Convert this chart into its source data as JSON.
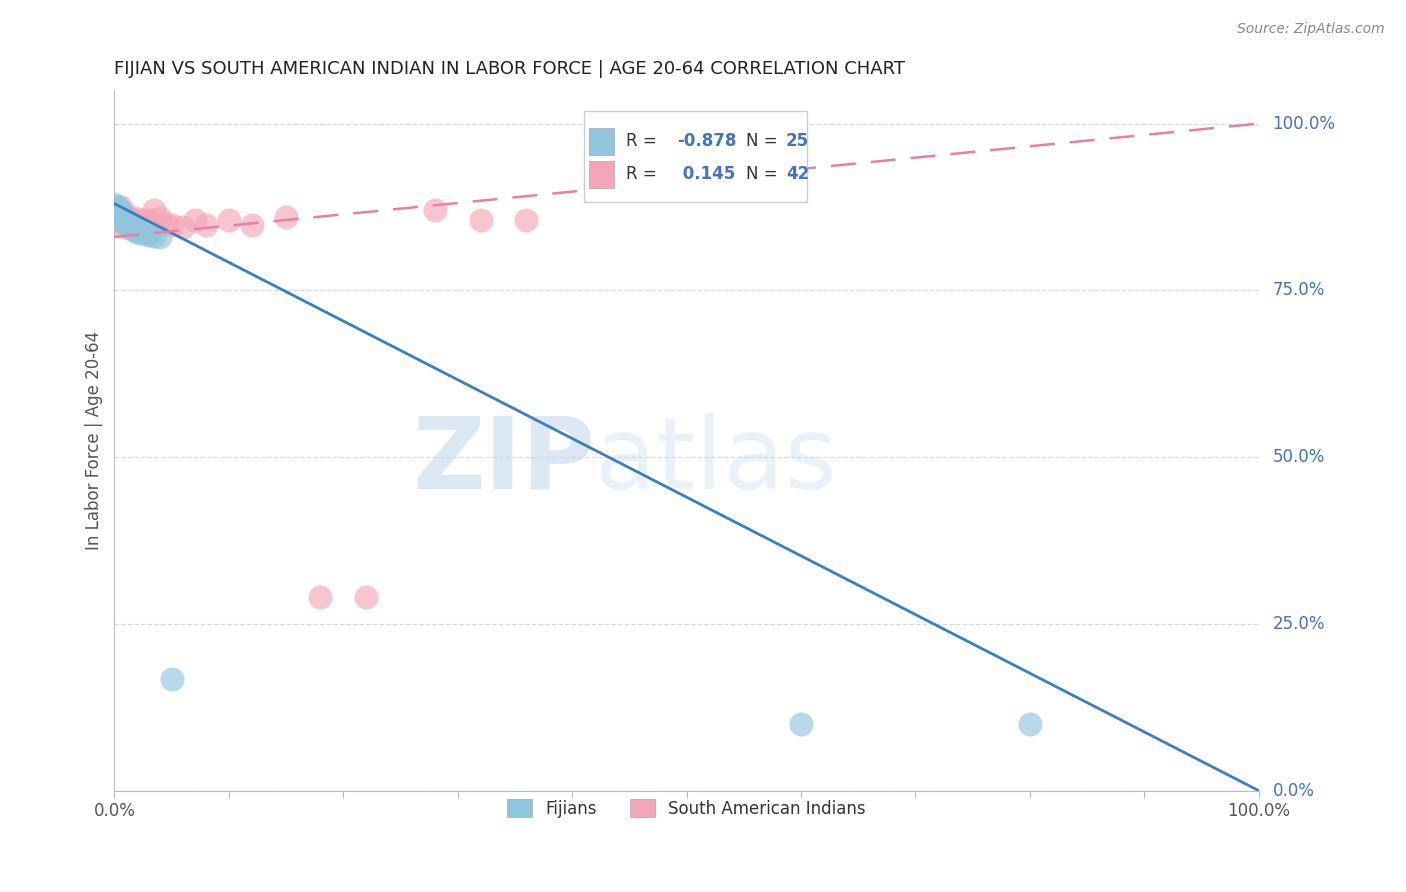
{
  "title": "FIJIAN VS SOUTH AMERICAN INDIAN IN LABOR FORCE | AGE 20-64 CORRELATION CHART",
  "source": "Source: ZipAtlas.com",
  "ylabel": "In Labor Force | Age 20-64",
  "watermark_zip": "ZIP",
  "watermark_atlas": "atlas",
  "fijian_color": "#92c5de",
  "south_american_color": "#f4a6b8",
  "fijian_line_color": "#3a7fc1",
  "south_american_line_color": "#e87fa0",
  "R_fijian": -0.878,
  "N_fijian": 25,
  "R_south_american": 0.145,
  "N_south_american": 42,
  "fijian_x": [
    0.0,
    0.002,
    0.003,
    0.004,
    0.005,
    0.006,
    0.007,
    0.008,
    0.009,
    0.01,
    0.012,
    0.013,
    0.015,
    0.016,
    0.018,
    0.02,
    0.022,
    0.025,
    0.028,
    0.03,
    0.035,
    0.04,
    0.05,
    0.6,
    0.8
  ],
  "fijian_y": [
    0.88,
    0.875,
    0.87,
    0.86,
    0.87,
    0.855,
    0.865,
    0.86,
    0.855,
    0.855,
    0.85,
    0.845,
    0.848,
    0.84,
    0.842,
    0.838,
    0.836,
    0.84,
    0.835,
    0.833,
    0.832,
    0.83,
    0.168,
    0.1,
    0.1
  ],
  "south_american_x": [
    0.0,
    0.001,
    0.002,
    0.003,
    0.004,
    0.005,
    0.006,
    0.006,
    0.007,
    0.007,
    0.008,
    0.008,
    0.009,
    0.01,
    0.011,
    0.012,
    0.013,
    0.014,
    0.015,
    0.016,
    0.017,
    0.018,
    0.02,
    0.022,
    0.025,
    0.028,
    0.03,
    0.035,
    0.04,
    0.045,
    0.05,
    0.06,
    0.07,
    0.08,
    0.1,
    0.12,
    0.15,
    0.18,
    0.22,
    0.28,
    0.32,
    0.36
  ],
  "south_american_y": [
    0.87,
    0.855,
    0.87,
    0.875,
    0.855,
    0.87,
    0.865,
    0.875,
    0.858,
    0.862,
    0.85,
    0.845,
    0.855,
    0.858,
    0.862,
    0.85,
    0.845,
    0.848,
    0.855,
    0.848,
    0.845,
    0.858,
    0.852,
    0.848,
    0.855,
    0.85,
    0.855,
    0.87,
    0.858,
    0.85,
    0.848,
    0.845,
    0.855,
    0.848,
    0.855,
    0.848,
    0.86,
    0.29,
    0.29,
    0.87,
    0.855,
    0.855
  ],
  "fij_line_x0": 0.0,
  "fij_line_y0": 0.88,
  "fij_line_x1": 1.0,
  "fij_line_y1": 0.0,
  "sa_line_x0": 0.0,
  "sa_line_y0": 0.83,
  "sa_line_x1": 1.0,
  "sa_line_y1": 1.0,
  "xlim": [
    0.0,
    1.0
  ],
  "ylim": [
    0.0,
    1.05
  ],
  "right_yticks": [
    0.0,
    0.25,
    0.5,
    0.75,
    1.0
  ],
  "right_yticklabels": [
    "0.0%",
    "25.0%",
    "50.0%",
    "75.0%",
    "100.0%"
  ],
  "grid_color": "#d8d8d8",
  "background_color": "#ffffff",
  "title_color": "#222222",
  "axis_label_color": "#555555",
  "right_tick_color": "#4472c4",
  "source_color": "#888888"
}
